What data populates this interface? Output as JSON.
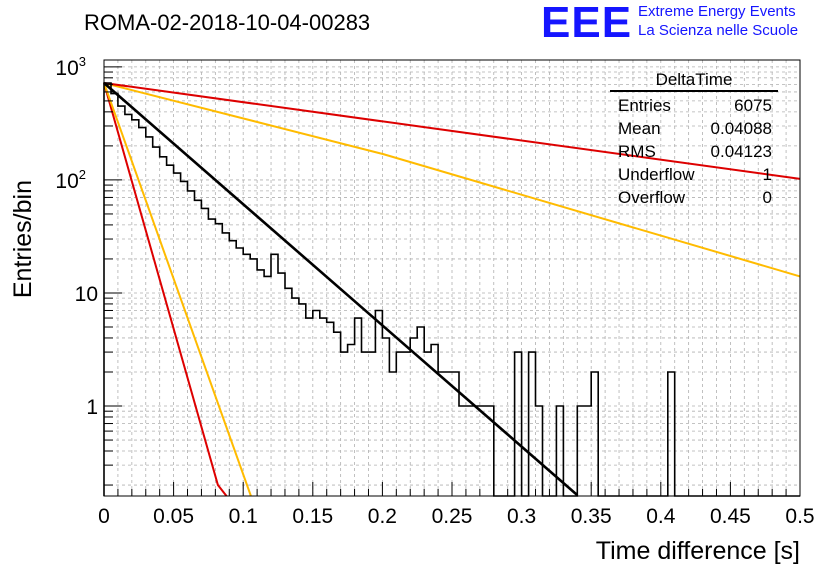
{
  "header": {
    "run_title": "ROMA-02-2018-10-04-00283",
    "logo_text": "EEE",
    "tagline_1": "Extreme Energy Events",
    "tagline_2": "La Scienza nelle Scuole"
  },
  "stats": {
    "title": "DeltaTime",
    "rows": [
      {
        "label": "Entries",
        "value": "6075"
      },
      {
        "label": "Mean",
        "value": "0.04088"
      },
      {
        "label": "RMS",
        "value": "0.04123"
      },
      {
        "label": "Underflow",
        "value": "1"
      },
      {
        "label": "Overflow",
        "value": "0"
      }
    ]
  },
  "colors": {
    "histogram": "#000000",
    "fit": "#000000",
    "red": "#dd0000",
    "orange": "#ffbb00",
    "grid": "#b0b0b0",
    "logo": "#1515ff"
  },
  "chart_data": {
    "type": "line",
    "title": "ROMA-02-2018-10-04-00283",
    "xlabel": "Time difference [s]",
    "ylabel": "Entries/bin",
    "xlim": [
      0,
      0.5
    ],
    "ylim": [
      0.16,
      1150
    ],
    "yscale": "log",
    "grid": true,
    "x_ticks": [
      "0",
      "0.05",
      "0.1",
      "0.15",
      "0.2",
      "0.25",
      "0.3",
      "0.35",
      "0.4",
      "0.45",
      "0.5"
    ],
    "x_tick_values": [
      0,
      0.05,
      0.1,
      0.15,
      0.2,
      0.25,
      0.3,
      0.35,
      0.4,
      0.45,
      0.5
    ],
    "y_ticks": [
      {
        "value": 1,
        "label": "1"
      },
      {
        "value": 10,
        "label": "10"
      },
      {
        "value": 100,
        "label": "10",
        "exponent": "2"
      },
      {
        "value": 1000,
        "label": "10",
        "exponent": "3"
      }
    ],
    "histogram": {
      "name": "DeltaTime",
      "bin_width": 0.005,
      "x_start": 0,
      "values": [
        720,
        580,
        450,
        380,
        340,
        290,
        240,
        195,
        160,
        135,
        115,
        97,
        80,
        66,
        56,
        45,
        41,
        34,
        29,
        25,
        22,
        20,
        16,
        14,
        22,
        15,
        11,
        9,
        8,
        6,
        7,
        6,
        5.5,
        4.5,
        3,
        3.5,
        6,
        3,
        3,
        7,
        4,
        2,
        3,
        3,
        4,
        5,
        3,
        3.5,
        2,
        2,
        2,
        1,
        1,
        1,
        1,
        1,
        0,
        0,
        0,
        3,
        0,
        3,
        1,
        0,
        0,
        1,
        0,
        0,
        1,
        1,
        2,
        0,
        0,
        0,
        0,
        0,
        0,
        0,
        0,
        0,
        0,
        2,
        0,
        0,
        0,
        0,
        0,
        0,
        0,
        0,
        0,
        0,
        0,
        0,
        0,
        0,
        0,
        0,
        0,
        0
      ]
    },
    "series": [
      {
        "name": "fit",
        "color": "#000000",
        "x": [
          0,
          0.34
        ],
        "y": [
          720,
          0.163
        ]
      },
      {
        "name": "red-steep",
        "color": "#dd0000",
        "x": [
          0,
          0.0818,
          0.088
        ],
        "y": [
          720,
          0.2,
          0.16
        ]
      },
      {
        "name": "orange-steep",
        "color": "#ffbb00",
        "x": [
          0,
          0.1055
        ],
        "y": [
          720,
          0.16
        ]
      },
      {
        "name": "orange-slow",
        "color": "#ffbb00",
        "x": [
          0,
          0.2,
          0.5
        ],
        "y": [
          720,
          170,
          14
        ]
      },
      {
        "name": "red-slow",
        "color": "#dd0000",
        "x": [
          0,
          0.5
        ],
        "y": [
          720,
          102
        ]
      }
    ]
  }
}
